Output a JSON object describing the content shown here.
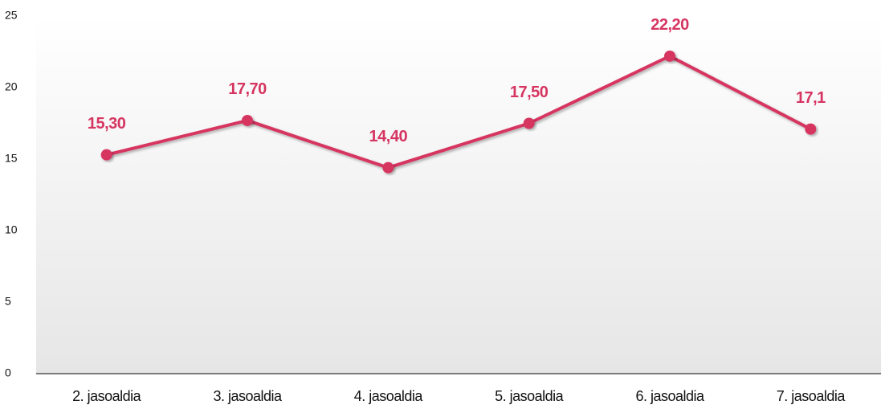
{
  "chart_data": {
    "type": "line",
    "categories": [
      "2. jasoaldia",
      "3. jasoaldia",
      "4. jasoaldia",
      "5. jasoaldia",
      "6. jasoaldia",
      "7. jasoaldia"
    ],
    "values": [
      15.3,
      17.7,
      14.4,
      17.5,
      22.2,
      17.1
    ],
    "value_labels": [
      "15,30",
      "17,70",
      "14,40",
      "17,50",
      "22,20",
      "17,1"
    ],
    "color": "#d63561",
    "ylim": [
      0,
      25
    ],
    "yticks": [
      0,
      5,
      10,
      15,
      20,
      25
    ],
    "grid": false
  }
}
